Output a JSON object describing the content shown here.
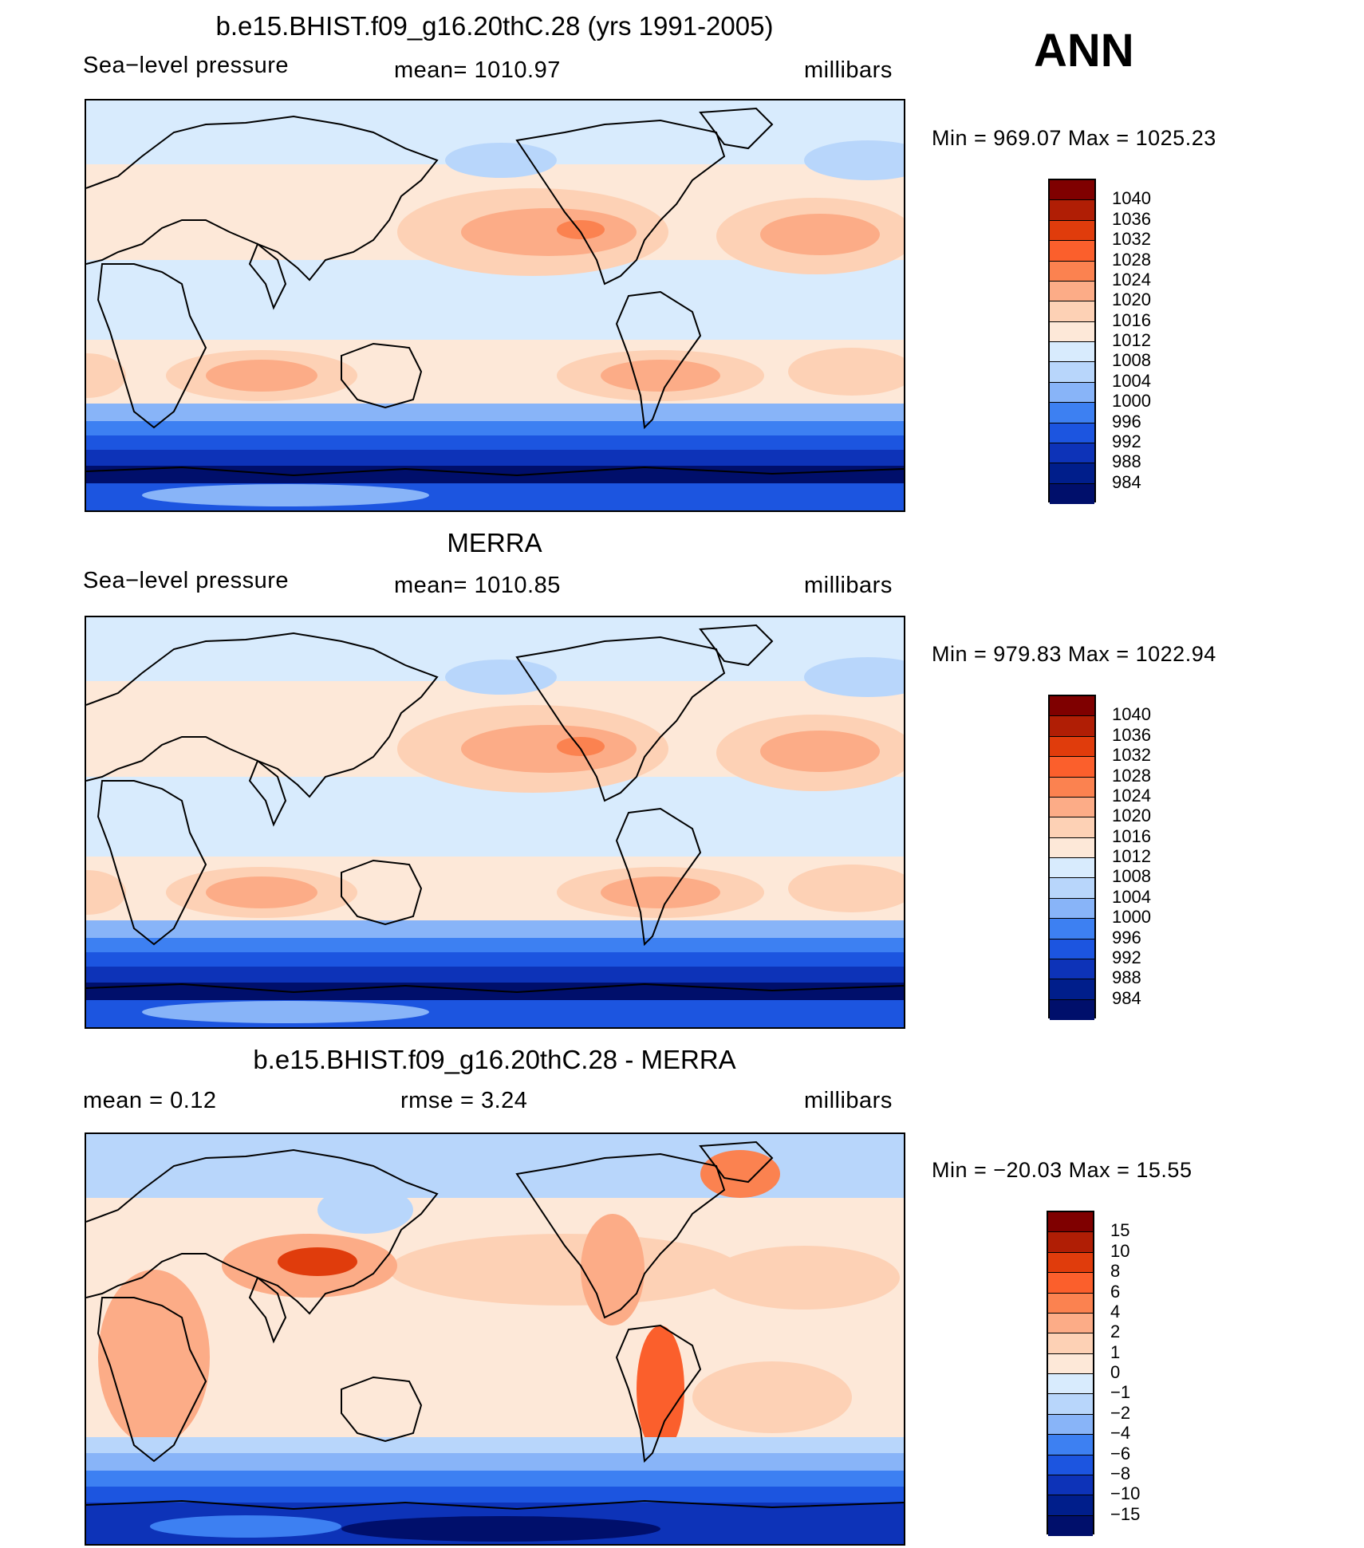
{
  "season": "ANN",
  "panels": [
    {
      "title": "b.e15.BHIST.f09_g16.20thC.28 (yrs 1991-2005)",
      "left_label": "Sea−level pressure",
      "center_label": "mean=  1010.97",
      "right_label": "millibars",
      "minmax": "Min  =  969.07  Max  =  1025.23",
      "colorbar_labels": [
        "1040",
        "1036",
        "1032",
        "1028",
        "1024",
        "1020",
        "1016",
        "1012",
        "1008",
        "1004",
        "1000",
        "996",
        "992",
        "988",
        "984"
      ],
      "colors": [
        "#7f0000",
        "#b01e05",
        "#e03c0c",
        "#fb5f2c",
        "#fb8250",
        "#fcac87",
        "#fdd1b5",
        "#fde8d8",
        "#d8ebfd",
        "#b8d6fb",
        "#88b4f8",
        "#3d80f2",
        "#1c55e0",
        "#0d33b8",
        "#001e8b",
        "#000f6b"
      ]
    },
    {
      "title": "MERRA",
      "left_label": "Sea−level pressure",
      "center_label": "mean=  1010.85",
      "right_label": "millibars",
      "minmax": "Min  =  979.83  Max  =  1022.94",
      "colorbar_labels": [
        "1040",
        "1036",
        "1032",
        "1028",
        "1024",
        "1020",
        "1016",
        "1012",
        "1008",
        "1004",
        "1000",
        "996",
        "992",
        "988",
        "984"
      ],
      "colors": [
        "#7f0000",
        "#b01e05",
        "#e03c0c",
        "#fb5f2c",
        "#fb8250",
        "#fcac87",
        "#fdd1b5",
        "#fde8d8",
        "#d8ebfd",
        "#b8d6fb",
        "#88b4f8",
        "#3d80f2",
        "#1c55e0",
        "#0d33b8",
        "#001e8b",
        "#000f6b"
      ]
    },
    {
      "title": "b.e15.BHIST.f09_g16.20thC.28 - MERRA",
      "left_label": "mean  =     0.12",
      "center_label": "rmse  =     3.24",
      "right_label": "millibars",
      "minmax": "Min  = −20.03  Max  =    15.55",
      "colorbar_labels": [
        "15",
        "10",
        "8",
        "6",
        "4",
        "2",
        "1",
        "0",
        "−1",
        "−2",
        "−4",
        "−6",
        "−8",
        "−10",
        "−15"
      ],
      "colors": [
        "#7f0000",
        "#b01e05",
        "#e03c0c",
        "#fb5f2c",
        "#fb8250",
        "#fcac87",
        "#fdd1b5",
        "#fde8d8",
        "#d8ebfd",
        "#b8d6fb",
        "#88b4f8",
        "#3d80f2",
        "#1c55e0",
        "#0d33b8",
        "#001e8b",
        "#000f6b"
      ]
    }
  ]
}
